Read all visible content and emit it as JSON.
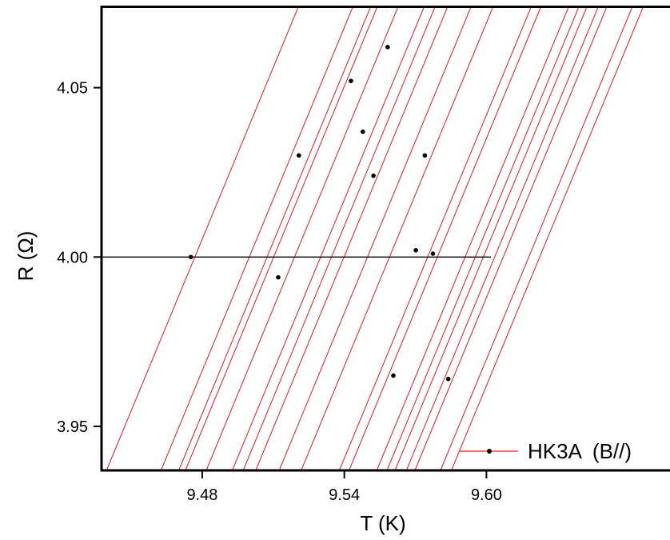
{
  "chart_data": {
    "type": "scatter",
    "title": "",
    "xlabel": "T (K)",
    "ylabel": "R (Ω)",
    "xlim": [
      9.4375,
      9.6775
    ],
    "ylim": [
      3.937,
      4.074
    ],
    "x_ticks": [
      9.48,
      9.54,
      9.6
    ],
    "x_tick_labels": [
      "9.48",
      "9.54",
      "9.60"
    ],
    "y_ticks": [
      3.95,
      4.0,
      4.05
    ],
    "y_tick_labels": [
      "3.95",
      "4.00",
      "4.05"
    ],
    "grid": false,
    "legend_position": "bottom-right",
    "series": [
      {
        "name": "HK3A  (B//)",
        "marker_color": "#000000",
        "line_color": "#e8161e",
        "points": [
          [
            9.4752,
            4.0
          ],
          [
            9.5121,
            3.994
          ],
          [
            9.5208,
            4.03
          ],
          [
            9.5428,
            4.052
          ],
          [
            9.5478,
            4.037
          ],
          [
            9.5523,
            4.024
          ],
          [
            9.5583,
            4.062
          ],
          [
            9.5607,
            3.965
          ],
          [
            9.5702,
            4.002
          ],
          [
            9.574,
            4.03
          ],
          [
            9.5774,
            4.001
          ],
          [
            9.5839,
            3.964
          ]
        ]
      }
    ],
    "reference_line": {
      "y": 4.0,
      "x_start": 9.4375,
      "x_end": 9.6019,
      "color": "#000000"
    },
    "fit_lines": {
      "color": "#e8161e",
      "slope": 1.69,
      "x_at_bottom": [
        9.4396,
        9.4626,
        9.4701,
        9.4729,
        9.4817,
        9.4927,
        9.4973,
        9.5026,
        9.5125,
        9.5218,
        9.5379,
        9.542,
        9.5537,
        9.558,
        9.5614,
        9.5662,
        9.5698,
        9.5806,
        9.5852
      ]
    }
  }
}
